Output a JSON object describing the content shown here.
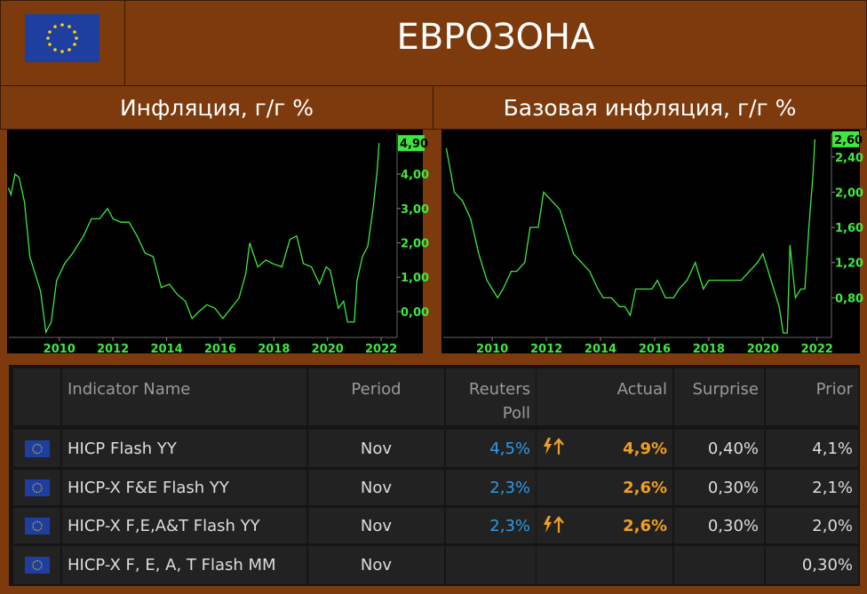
{
  "header": {
    "title": "ЕВРОЗОНА"
  },
  "chart_data": [
    {
      "type": "line",
      "title": "Инфляция, г/г %",
      "x": [
        2008.1,
        2008.2,
        2008.35,
        2008.5,
        2008.7,
        2008.9,
        2009.1,
        2009.3,
        2009.5,
        2009.7,
        2009.9,
        2010.2,
        2010.5,
        2010.9,
        2011.2,
        2011.5,
        2011.8,
        2012.0,
        2012.3,
        2012.6,
        2012.9,
        2013.2,
        2013.5,
        2013.8,
        2014.1,
        2014.4,
        2014.7,
        2014.95,
        2015.2,
        2015.5,
        2015.8,
        2016.1,
        2016.4,
        2016.7,
        2016.95,
        2017.1,
        2017.4,
        2017.7,
        2017.95,
        2018.3,
        2018.6,
        2018.85,
        2019.1,
        2019.4,
        2019.7,
        2019.95,
        2020.1,
        2020.4,
        2020.6,
        2020.75,
        2021.0,
        2021.1,
        2021.3,
        2021.5,
        2021.7,
        2021.85,
        2021.92
      ],
      "series": [
        {
          "color": "#3ee83e",
          "values": [
            3.6,
            3.4,
            4.0,
            3.9,
            3.2,
            1.6,
            1.1,
            0.6,
            -0.6,
            -0.3,
            0.9,
            1.4,
            1.7,
            2.2,
            2.7,
            2.7,
            3.0,
            2.7,
            2.6,
            2.6,
            2.2,
            1.7,
            1.6,
            0.7,
            0.8,
            0.5,
            0.3,
            -0.2,
            0.0,
            0.2,
            0.1,
            -0.2,
            0.1,
            0.4,
            1.1,
            2.0,
            1.3,
            1.5,
            1.4,
            1.3,
            2.1,
            2.2,
            1.4,
            1.3,
            0.8,
            1.3,
            1.2,
            0.1,
            0.3,
            -0.3,
            -0.3,
            0.9,
            1.6,
            1.9,
            3.0,
            4.1,
            4.9
          ]
        }
      ],
      "xlim": [
        2008.12,
        2022.56
      ],
      "xticks": [
        2010,
        2012,
        2014,
        2016,
        2018,
        2020,
        2022
      ],
      "ylim": [
        -0.75,
        5.19
      ],
      "yticks": [
        {
          "value": 0,
          "label": "0,00"
        },
        {
          "value": 1,
          "label": "1,00"
        },
        {
          "value": 2,
          "label": "2,00"
        },
        {
          "value": 3,
          "label": "3,00"
        },
        {
          "value": 4,
          "label": "4,00"
        }
      ],
      "annotations": [
        {
          "value": 4.9,
          "label": "4,90"
        }
      ]
    },
    {
      "type": "line",
      "title": "Базовая инфляция, г/г %",
      "x": [
        2008.3,
        2008.6,
        2008.9,
        2009.2,
        2009.5,
        2009.8,
        2010.0,
        2010.2,
        2010.4,
        2010.7,
        2010.9,
        2011.2,
        2011.4,
        2011.7,
        2011.9,
        2012.2,
        2012.5,
        2012.8,
        2013.0,
        2013.3,
        2013.6,
        2013.9,
        2014.1,
        2014.4,
        2014.7,
        2014.9,
        2015.1,
        2015.3,
        2015.6,
        2015.9,
        2016.1,
        2016.4,
        2016.7,
        2016.9,
        2017.2,
        2017.5,
        2017.8,
        2018.0,
        2018.3,
        2018.6,
        2018.9,
        2019.2,
        2019.5,
        2019.8,
        2020.0,
        2020.2,
        2020.4,
        2020.6,
        2020.75,
        2020.9,
        2021.0,
        2021.2,
        2021.4,
        2021.55,
        2021.7,
        2021.85,
        2021.92
      ],
      "series": [
        {
          "color": "#3ee83e",
          "values": [
            2.5,
            2.0,
            1.9,
            1.7,
            1.3,
            1.0,
            0.9,
            0.8,
            0.9,
            1.1,
            1.1,
            1.2,
            1.6,
            1.6,
            2.0,
            1.9,
            1.8,
            1.5,
            1.3,
            1.2,
            1.1,
            0.9,
            0.8,
            0.8,
            0.7,
            0.7,
            0.6,
            0.9,
            0.9,
            0.9,
            1.0,
            0.8,
            0.8,
            0.9,
            1.0,
            1.2,
            0.9,
            1.0,
            1.0,
            1.0,
            1.0,
            1.0,
            1.1,
            1.2,
            1.3,
            1.1,
            0.9,
            0.7,
            0.4,
            0.4,
            1.4,
            0.8,
            0.9,
            0.9,
            1.6,
            2.2,
            2.6
          ]
        }
      ],
      "xlim": [
        2008.19,
        2022.5
      ],
      "xticks": [
        2010,
        2012,
        2014,
        2016,
        2018,
        2020,
        2022
      ],
      "ylim": [
        0.35,
        2.67
      ],
      "yticks": [
        {
          "value": 0.8,
          "label": "0,80"
        },
        {
          "value": 1.2,
          "label": "1,20"
        },
        {
          "value": 1.6,
          "label": "1,60"
        },
        {
          "value": 2.0,
          "label": "2,00"
        },
        {
          "value": 2.4,
          "label": "2,40"
        }
      ],
      "annotations": [
        {
          "value": 2.6,
          "label": "2,60"
        }
      ]
    }
  ],
  "table": {
    "columns": [
      "Indicator Name",
      "Period",
      "Reuters Poll",
      "Actual",
      "Surprise",
      "Prior"
    ],
    "rows": [
      {
        "name": "HICP Flash YY",
        "period": "Nov",
        "poll": "4,5%",
        "alert": true,
        "actual": "4,9%",
        "surprise": "0,40%",
        "prior": "4,1%"
      },
      {
        "name": "HICP-X F&E Flash YY",
        "period": "Nov",
        "poll": "2,3%",
        "alert": false,
        "actual": "2,6%",
        "surprise": "0,30%",
        "prior": "2,1%"
      },
      {
        "name": "HICP-X F,E,A&T Flash YY",
        "period": "Nov",
        "poll": "2,3%",
        "alert": true,
        "actual": "2,6%",
        "surprise": "0,30%",
        "prior": "2,0%"
      },
      {
        "name": "HICP-X F, E, A, T Flash MM",
        "period": "Nov",
        "prior": "0,30%"
      }
    ]
  }
}
